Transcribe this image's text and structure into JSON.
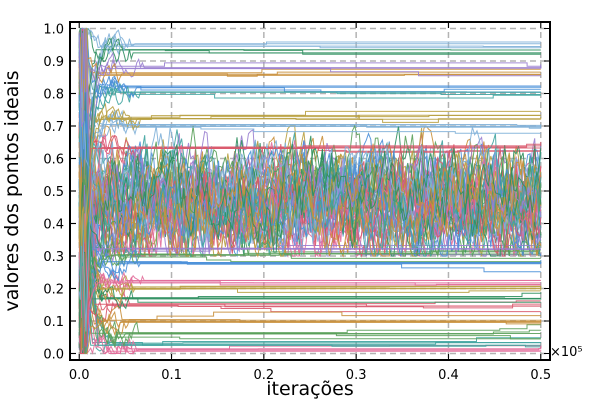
{
  "chart_data": {
    "type": "line",
    "title": "",
    "xlabel": "iterações",
    "ylabel": "valores dos pontos ideais",
    "x_scale_label": "×10⁵",
    "xlim": [
      -0.01,
      0.51
    ],
    "ylim": [
      -0.02,
      1.02
    ],
    "x_ticks": [
      0.0,
      0.1,
      0.2,
      0.3,
      0.4,
      0.5
    ],
    "x_tick_labels": [
      "0.0",
      "0.1",
      "0.2",
      "0.3",
      "0.4",
      "0.5"
    ],
    "y_ticks": [
      0.0,
      0.1,
      0.2,
      0.3,
      0.4,
      0.5,
      0.6,
      0.7,
      0.8,
      0.9,
      1.0
    ],
    "y_tick_labels": [
      "0.0",
      "0.1",
      "0.2",
      "0.3",
      "0.4",
      "0.5",
      "0.6",
      "0.7",
      "0.8",
      "0.9",
      "1.0"
    ],
    "grid": true,
    "grid_style": "dashed",
    "legend": "none",
    "palette": [
      "#e26d9a",
      "#3fa4a0",
      "#4a8fd8",
      "#5aa05a",
      "#c98f3a",
      "#9a7fd0",
      "#d9586b",
      "#2f8f5f",
      "#7fb0d8",
      "#b8a040"
    ],
    "series_summary": {
      "num_series": 140,
      "x_range": [
        0.0,
        0.5
      ],
      "initial_spread": [
        0.0,
        1.0
      ],
      "converged_plateau_levels": [
        0.01,
        0.03,
        0.05,
        0.06,
        0.1,
        0.14,
        0.15,
        0.17,
        0.19,
        0.2,
        0.22,
        0.27,
        0.28,
        0.3,
        0.31,
        0.32,
        0.63,
        0.65,
        0.7,
        0.72,
        0.76,
        0.8,
        0.82,
        0.84,
        0.86,
        0.88,
        0.9,
        0.93,
        0.95,
        0.97
      ],
      "oscillating_band": [
        0.35,
        0.65
      ],
      "oscillating_band_center": 0.47
    }
  }
}
